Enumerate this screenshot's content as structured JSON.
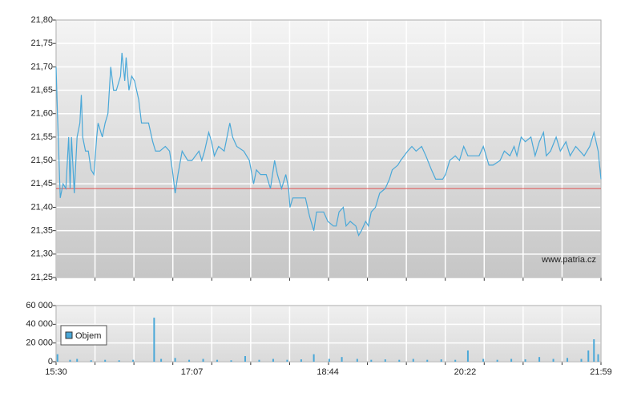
{
  "chart_data": [
    {
      "type": "line",
      "annotation": "www.patria.cz",
      "x": [
        "15:30",
        "15:31",
        "15:33",
        "15:35",
        "15:37",
        "15:39",
        "15:40",
        "15:41",
        "15:43",
        "15:45",
        "15:47",
        "15:48",
        "15:49",
        "15:51",
        "15:53",
        "15:55",
        "15:57",
        "15:59",
        "16:00",
        "16:03",
        "16:05",
        "16:07",
        "16:09",
        "16:11",
        "16:13",
        "16:16",
        "16:17",
        "16:19",
        "16:20",
        "16:22",
        "16:24",
        "16:26",
        "16:29",
        "16:31",
        "16:36",
        "16:39",
        "16:41",
        "16:44",
        "16:48",
        "16:51",
        "16:53",
        "16:55",
        "16:57",
        "17:00",
        "17:04",
        "17:07",
        "17:12",
        "17:14",
        "17:16",
        "17:19",
        "17:21",
        "17:23",
        "17:26",
        "17:30",
        "17:34",
        "17:36",
        "17:39",
        "17:44",
        "17:48",
        "17:51",
        "17:53",
        "17:56",
        "18:00",
        "18:03",
        "18:06",
        "18:08",
        "18:11",
        "18:14",
        "18:16",
        "18:17",
        "18:19",
        "18:24",
        "18:28",
        "18:31",
        "18:34",
        "18:36",
        "18:41",
        "18:44",
        "18:48",
        "18:50",
        "18:52",
        "18:55",
        "18:57",
        "19:00",
        "19:04",
        "19:06",
        "19:08",
        "19:11",
        "19:13",
        "19:15",
        "19:18",
        "19:21",
        "19:25",
        "19:28",
        "19:30",
        "19:34",
        "19:36",
        "19:41",
        "19:44",
        "19:47",
        "19:51",
        "19:54",
        "19:58",
        "20:01",
        "20:06",
        "20:08",
        "20:11",
        "20:15",
        "20:18",
        "20:21",
        "20:24",
        "20:29",
        "20:32",
        "20:35",
        "20:39",
        "20:42",
        "20:47",
        "20:50",
        "20:54",
        "20:57",
        "20:59",
        "21:02",
        "21:05",
        "21:09",
        "21:12",
        "21:15",
        "21:18",
        "21:20",
        "21:23",
        "21:27",
        "21:30",
        "21:34",
        "21:37",
        "21:41",
        "21:44",
        "21:47",
        "21:51",
        "21:54",
        "21:57",
        "21:59"
      ],
      "series": [
        {
          "color": "#4aa8d8",
          "values": [
            21.7,
            21.6,
            21.42,
            21.45,
            21.44,
            21.55,
            21.44,
            21.55,
            21.43,
            21.55,
            21.58,
            21.64,
            21.55,
            21.52,
            21.52,
            21.48,
            21.47,
            21.55,
            21.58,
            21.55,
            21.58,
            21.6,
            21.7,
            21.65,
            21.65,
            21.68,
            21.73,
            21.67,
            21.72,
            21.65,
            21.68,
            21.67,
            21.63,
            21.58,
            21.58,
            21.54,
            21.52,
            21.52,
            21.53,
            21.52,
            21.48,
            21.43,
            21.47,
            21.52,
            21.5,
            21.5,
            21.52,
            21.5,
            21.52,
            21.56,
            21.54,
            21.51,
            21.53,
            21.52,
            21.58,
            21.55,
            21.53,
            21.52,
            21.5,
            21.45,
            21.48,
            21.47,
            21.47,
            21.44,
            21.5,
            21.47,
            21.44,
            21.47,
            21.44,
            21.4,
            21.42,
            21.42,
            21.42,
            21.38,
            21.35,
            21.39,
            21.39,
            21.37,
            21.36,
            21.36,
            21.39,
            21.4,
            21.36,
            21.37,
            21.36,
            21.34,
            21.35,
            21.37,
            21.36,
            21.39,
            21.4,
            21.43,
            21.44,
            21.46,
            21.48,
            21.49,
            21.5,
            21.52,
            21.53,
            21.52,
            21.53,
            21.51,
            21.48,
            21.46,
            21.46,
            21.47,
            21.5,
            21.51,
            21.5,
            21.53,
            21.51,
            21.51,
            21.51,
            21.53,
            21.49,
            21.49,
            21.5,
            21.52,
            21.51,
            21.53,
            21.51,
            21.55,
            21.54,
            21.55,
            21.51,
            21.54,
            21.56,
            21.51,
            21.52,
            21.55,
            21.52,
            21.54,
            21.51,
            21.53,
            21.52,
            21.51,
            21.53,
            21.56,
            21.52,
            21.46
          ]
        }
      ],
      "reference_line": 21.44,
      "reference_color": "#e05050",
      "xlim": [
        "15:30",
        "21:59"
      ],
      "ylim": [
        21.25,
        21.8
      ],
      "yticks": [
        {
          "value": 21.25,
          "label": "21,25"
        },
        {
          "value": 21.3,
          "label": "21,30"
        },
        {
          "value": 21.35,
          "label": "21,35"
        },
        {
          "value": 21.4,
          "label": "21,40"
        },
        {
          "value": 21.45,
          "label": "21,45"
        },
        {
          "value": 21.5,
          "label": "21,50"
        },
        {
          "value": 21.55,
          "label": "21,55"
        },
        {
          "value": 21.6,
          "label": "21,60"
        },
        {
          "value": 21.65,
          "label": "21,65"
        },
        {
          "value": 21.7,
          "label": "21,70"
        },
        {
          "value": 21.75,
          "label": "21,75"
        },
        {
          "value": 21.8,
          "label": "21,80"
        }
      ],
      "grid": true
    },
    {
      "type": "bar",
      "x": [
        "15:31",
        "15:40",
        "15:45",
        "15:55",
        "16:05",
        "16:15",
        "16:25",
        "16:40",
        "16:45",
        "16:55",
        "17:05",
        "17:15",
        "17:25",
        "17:35",
        "17:45",
        "17:55",
        "18:05",
        "18:15",
        "18:25",
        "18:34",
        "18:45",
        "18:54",
        "19:05",
        "19:15",
        "19:25",
        "19:35",
        "19:45",
        "19:55",
        "20:05",
        "20:15",
        "20:24",
        "20:35",
        "20:45",
        "20:55",
        "21:05",
        "21:15",
        "21:25",
        "21:35",
        "21:45",
        "21:50",
        "21:54",
        "21:57"
      ],
      "series": [
        {
          "name": "Objem",
          "color": "#4aa8d8",
          "values": [
            8000,
            2000,
            3000,
            1500,
            2000,
            1500,
            2000,
            47000,
            3000,
            4000,
            2000,
            3000,
            2000,
            1500,
            6000,
            2000,
            3000,
            2000,
            2500,
            8000,
            3000,
            5000,
            3000,
            2000,
            2500,
            2000,
            3000,
            2000,
            2500,
            2000,
            12000,
            3000,
            2000,
            3000,
            2500,
            5000,
            3000,
            4000,
            3000,
            12000,
            24000,
            8000
          ]
        }
      ],
      "xlim": [
        "15:30",
        "21:59"
      ],
      "xticks": [
        "15:30",
        "17:07",
        "18:44",
        "20:22",
        "21:59"
      ],
      "ylim": [
        0,
        60000
      ],
      "yticks": [
        0,
        {
          "value": 20000,
          "label": "20 000"
        },
        {
          "value": 40000,
          "label": "40 000"
        },
        {
          "value": 60000,
          "label": "60 000"
        }
      ],
      "grid": true,
      "legend": "upper-left"
    }
  ]
}
